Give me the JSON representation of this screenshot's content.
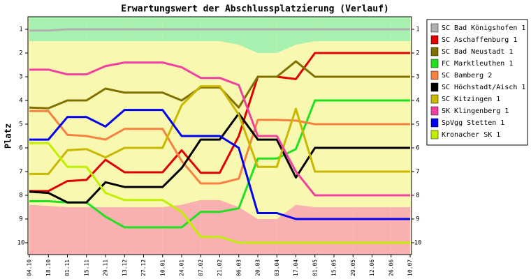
{
  "chart_data": {
    "type": "line",
    "title": "Erwartungswert der Abschlussplatzierung (Verlauf)",
    "y_label": "Platz",
    "categories": [
      "04.10",
      "18.10",
      "01.11",
      "15.11",
      "29.11",
      "13.12",
      "27.12",
      "10.01",
      "24.01",
      "07.02",
      "21.02",
      "06.03",
      "20.03",
      "03.04",
      "17.04",
      "01.05",
      "15.05",
      "29.05",
      "12.06",
      "26.06",
      "10.07"
    ],
    "ylim": [
      10.5,
      0.47
    ],
    "yticks": [
      1,
      2,
      3,
      4,
      5,
      6,
      7,
      8,
      9,
      10
    ],
    "inverted": true,
    "legend": "right",
    "zones": {
      "top_color": "#a8f0b0",
      "middle_color": "#f8f8b0",
      "bottom_color": "#f8b0b0",
      "top_zone_bottom": [
        1.5,
        1.5,
        1.5,
        1.5,
        1.5,
        1.5,
        1.5,
        1.5,
        1.5,
        1.5,
        1.5,
        1.65,
        2.0,
        2.0,
        1.65,
        1.5,
        1.5,
        1.5,
        1.5,
        1.5,
        1.5
      ],
      "bottom_zone_top": [
        8.4,
        8.45,
        8.5,
        8.5,
        8.5,
        8.5,
        8.5,
        8.5,
        8.4,
        8.2,
        8.2,
        8.5,
        9.0,
        9.0,
        8.4,
        8.5,
        8.5,
        8.5,
        8.5,
        8.5,
        8.5
      ]
    },
    "series": [
      {
        "name": "SC Bad Königshofen 1",
        "color": "#b0b0b0",
        "values": [
          1.05,
          1.05,
          1.0,
          1.0,
          1.0,
          1.0,
          1.0,
          1.0,
          1.0,
          1.0,
          1.0,
          1.0,
          1.0,
          1.0,
          1.0,
          1.0,
          1.0,
          1.0,
          1.0,
          1.0,
          1.0
        ]
      },
      {
        "name": "SC Aschaffenburg 1",
        "color": "#e00000",
        "values": [
          7.82,
          7.82,
          7.4,
          7.35,
          6.5,
          7.03,
          7.03,
          7.03,
          6.1,
          7.05,
          7.05,
          5.5,
          3.0,
          3.0,
          3.1,
          2.0,
          2.0,
          2.0,
          2.0,
          2.0,
          2.0
        ]
      },
      {
        "name": "SC Bad Neustadt 1",
        "color": "#807000",
        "values": [
          4.3,
          4.33,
          4.0,
          4.0,
          3.5,
          3.67,
          3.67,
          3.67,
          4.0,
          3.45,
          3.45,
          4.3,
          3.0,
          3.0,
          2.35,
          3.0,
          3.0,
          3.0,
          3.0,
          3.0,
          3.0
        ]
      },
      {
        "name": "FC Marktleuthen 1",
        "color": "#20e020",
        "values": [
          8.25,
          8.25,
          8.3,
          8.3,
          8.9,
          9.35,
          9.35,
          9.35,
          9.35,
          8.7,
          8.7,
          8.55,
          6.45,
          6.45,
          6.05,
          4.0,
          4.0,
          4.0,
          4.0,
          4.0,
          4.0
        ]
      },
      {
        "name": "SC Bamberg 2",
        "color": "#f88040",
        "values": [
          4.45,
          4.45,
          5.45,
          5.5,
          5.65,
          5.2,
          5.2,
          5.2,
          6.55,
          7.5,
          7.5,
          7.3,
          4.82,
          4.82,
          4.85,
          5.0,
          5.0,
          5.0,
          5.0,
          5.0,
          5.0
        ]
      },
      {
        "name": "SC Höchstadt/Aisch 1",
        "color": "#000000",
        "values": [
          7.85,
          7.9,
          8.3,
          8.3,
          7.45,
          7.65,
          7.65,
          7.65,
          6.85,
          5.65,
          5.65,
          4.55,
          5.65,
          5.65,
          7.25,
          6.0,
          6.0,
          6.0,
          6.0,
          6.0,
          6.0
        ]
      },
      {
        "name": "SC Kitzingen 1",
        "color": "#c8b800",
        "values": [
          7.1,
          7.1,
          6.1,
          6.05,
          6.4,
          6.0,
          6.0,
          6.0,
          4.2,
          3.4,
          3.4,
          4.6,
          6.8,
          6.8,
          4.35,
          7.0,
          7.0,
          7.0,
          7.0,
          7.0,
          7.0
        ]
      },
      {
        "name": "SK Klingenberg 1",
        "color": "#f040a0",
        "values": [
          2.7,
          2.7,
          2.9,
          2.9,
          2.55,
          2.4,
          2.4,
          2.4,
          2.6,
          3.05,
          3.05,
          3.35,
          5.5,
          5.5,
          7.0,
          8.0,
          8.0,
          8.0,
          8.0,
          8.0,
          8.0
        ]
      },
      {
        "name": "SpVgg Stetten 1",
        "color": "#0000f0",
        "values": [
          5.65,
          5.65,
          4.7,
          4.7,
          5.1,
          4.4,
          4.4,
          4.4,
          5.5,
          5.5,
          5.5,
          6.0,
          8.75,
          8.75,
          9.0,
          9.0,
          9.0,
          9.0,
          9.0,
          9.0,
          9.0
        ]
      },
      {
        "name": "Kronacher SK 1",
        "color": "#c0f000",
        "values": [
          5.8,
          5.8,
          6.8,
          6.8,
          7.9,
          8.2,
          8.2,
          8.2,
          8.7,
          9.75,
          9.75,
          10.0,
          10.0,
          10.0,
          10.0,
          10.0,
          10.0,
          10.0,
          10.0,
          10.0,
          10.0
        ]
      }
    ]
  }
}
